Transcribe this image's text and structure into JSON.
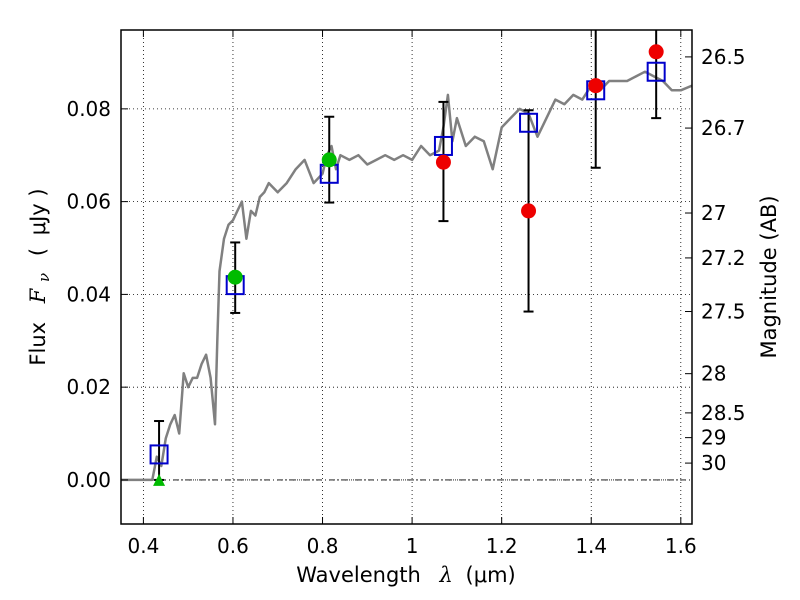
{
  "chart_data": {
    "type": "scatter",
    "xlabel": {
      "text": "Wavelength",
      "symbol": "λ",
      "unit": "(μm)"
    },
    "ylabel": {
      "text": "Flux",
      "symbol": "F",
      "subscript": "ν",
      "unit": "μJy"
    },
    "ylabel_right": "Magnitude (AB)",
    "xlim": [
      0.35,
      1.625
    ],
    "ylim": [
      -0.0095,
      0.097
    ],
    "grid": true,
    "x_ticks": [
      {
        "value": 0.4,
        "label": "0.4"
      },
      {
        "value": 0.6,
        "label": "0.6"
      },
      {
        "value": 0.8,
        "label": "0.8"
      },
      {
        "value": 1.0,
        "label": "1"
      },
      {
        "value": 1.2,
        "label": "1.2"
      },
      {
        "value": 1.4,
        "label": "1.4"
      },
      {
        "value": 1.6,
        "label": "1.6"
      }
    ],
    "y_ticks": [
      {
        "value": 0.0,
        "label": "0.00"
      },
      {
        "value": 0.02,
        "label": "0.02"
      },
      {
        "value": 0.04,
        "label": "0.04"
      },
      {
        "value": 0.06,
        "label": "0.06"
      },
      {
        "value": 0.08,
        "label": "0.08"
      }
    ],
    "right_ticks": [
      {
        "mag": 26.5,
        "label": "26.5"
      },
      {
        "mag": 26.7,
        "label": "26.7"
      },
      {
        "mag": 27,
        "label": "27"
      },
      {
        "mag": 27.2,
        "label": "27.2"
      },
      {
        "mag": 27.5,
        "label": "27.5"
      },
      {
        "mag": 28,
        "label": "28"
      },
      {
        "mag": 28.5,
        "label": "28.5"
      },
      {
        "mag": 29,
        "label": "29"
      },
      {
        "mag": 30,
        "label": "30"
      }
    ],
    "model_spectrum": {
      "color": "#808080",
      "x": [
        0.35,
        0.4,
        0.42,
        0.43,
        0.44,
        0.45,
        0.46,
        0.47,
        0.48,
        0.49,
        0.5,
        0.51,
        0.52,
        0.53,
        0.54,
        0.55,
        0.56,
        0.565,
        0.57,
        0.58,
        0.59,
        0.6,
        0.61,
        0.62,
        0.63,
        0.64,
        0.65,
        0.66,
        0.67,
        0.68,
        0.7,
        0.72,
        0.74,
        0.76,
        0.78,
        0.8,
        0.81,
        0.82,
        0.83,
        0.84,
        0.86,
        0.88,
        0.9,
        0.92,
        0.94,
        0.96,
        0.98,
        1.0,
        1.02,
        1.04,
        1.06,
        1.07,
        1.08,
        1.09,
        1.1,
        1.12,
        1.14,
        1.16,
        1.18,
        1.2,
        1.22,
        1.24,
        1.26,
        1.28,
        1.3,
        1.32,
        1.34,
        1.36,
        1.38,
        1.4,
        1.42,
        1.44,
        1.46,
        1.48,
        1.5,
        1.52,
        1.54,
        1.56,
        1.58,
        1.6,
        1.625
      ],
      "y": [
        0.0,
        0.0,
        0.0,
        0.005,
        0.003,
        0.009,
        0.012,
        0.014,
        0.01,
        0.023,
        0.02,
        0.022,
        0.022,
        0.025,
        0.027,
        0.022,
        0.012,
        0.03,
        0.045,
        0.052,
        0.055,
        0.056,
        0.058,
        0.06,
        0.052,
        0.058,
        0.057,
        0.061,
        0.062,
        0.064,
        0.062,
        0.064,
        0.067,
        0.069,
        0.064,
        0.066,
        0.07,
        0.072,
        0.067,
        0.07,
        0.069,
        0.07,
        0.068,
        0.069,
        0.07,
        0.069,
        0.07,
        0.069,
        0.072,
        0.07,
        0.071,
        0.076,
        0.083,
        0.073,
        0.078,
        0.072,
        0.074,
        0.073,
        0.067,
        0.076,
        0.078,
        0.08,
        0.079,
        0.074,
        0.078,
        0.082,
        0.081,
        0.083,
        0.082,
        0.085,
        0.084,
        0.086,
        0.086,
        0.086,
        0.087,
        0.088,
        0.087,
        0.086,
        0.084,
        0.084,
        0.085
      ]
    },
    "model_points": {
      "color": "#0000cc",
      "x": [
        0.435,
        0.605,
        0.815,
        1.07,
        1.26,
        1.41,
        1.545
      ],
      "y": [
        0.0055,
        0.042,
        0.066,
        0.072,
        0.077,
        0.084,
        0.088
      ]
    },
    "observed_points": [
      {
        "x": 0.605,
        "y": 0.0437,
        "err_low": 0.036,
        "err_high": 0.0512,
        "color": "#00bb00"
      },
      {
        "x": 0.815,
        "y": 0.069,
        "err_low": 0.0598,
        "err_high": 0.0783,
        "color": "#00bb00"
      },
      {
        "x": 1.07,
        "y": 0.0685,
        "err_low": 0.0558,
        "err_high": 0.0815,
        "color": "#ee0000"
      },
      {
        "x": 1.26,
        "y": 0.058,
        "err_low": 0.0363,
        "err_high": 0.0797,
        "color": "#ee0000"
      },
      {
        "x": 1.41,
        "y": 0.085,
        "err_low": 0.0673,
        "err_high": 0.097,
        "color": "#ee0000"
      },
      {
        "x": 1.545,
        "y": 0.0923,
        "err_low": 0.078,
        "err_high": 0.097,
        "color": "#ee0000"
      }
    ],
    "upper_limit_points": [
      {
        "x": 0.435,
        "y": 0.0,
        "err_high": 0.0127,
        "color": "#00bb00"
      }
    ]
  }
}
